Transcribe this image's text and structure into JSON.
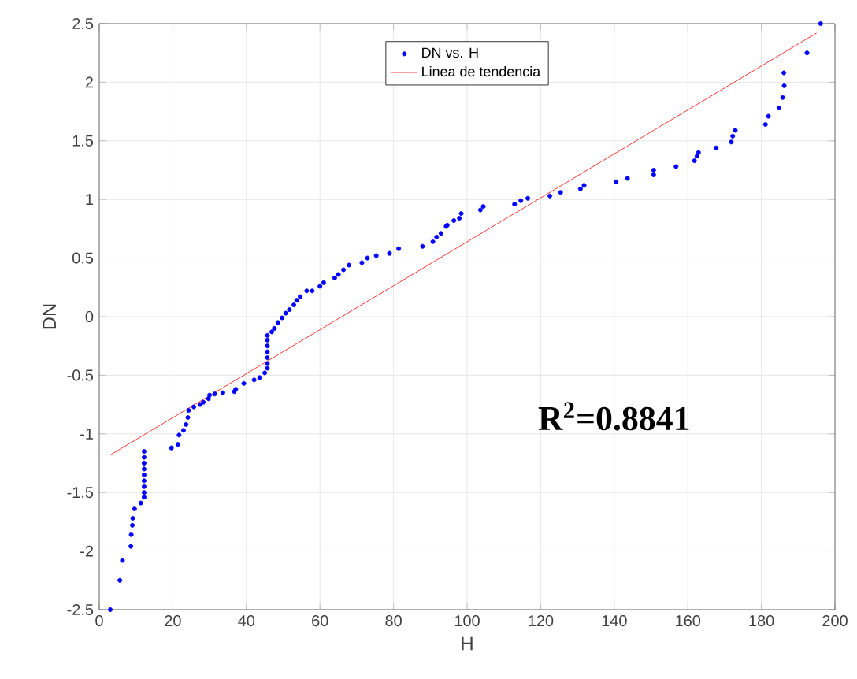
{
  "chart_data": {
    "type": "scatter",
    "xlabel": "H",
    "ylabel": "DN",
    "xlim": [
      0,
      200
    ],
    "ylim": [
      -2.5,
      2.5
    ],
    "xticks": [
      0,
      20,
      40,
      60,
      80,
      100,
      120,
      140,
      160,
      180,
      200
    ],
    "yticks": [
      -2.5,
      -2,
      -1.5,
      -1,
      -0.5,
      0,
      0.5,
      1,
      1.5,
      2,
      2.5
    ],
    "grid": true,
    "legend": "top",
    "annotations": [
      "R$^{2}$=0.8841"
    ],
    "series": [
      {
        "name": "DN vs. H",
        "color": "#0000ff",
        "marker": "circle",
        "x": [
          3,
          5.6,
          6.3,
          8.6,
          8.7,
          9,
          9.1,
          9.6,
          11.3,
          12.2,
          12.2,
          12.2,
          12.2,
          12.2,
          12.2,
          12.2,
          12.2,
          12.2,
          19.6,
          21.4,
          21.7,
          22.9,
          23.6,
          24.1,
          24.3,
          25.7,
          27.4,
          28.3,
          29.7,
          30,
          31.4,
          33.6,
          36.7,
          37.1,
          39.3,
          42.1,
          43.6,
          45,
          45.7,
          45.7,
          45.7,
          45.7,
          45.7,
          45.7,
          45.7,
          46.9,
          47.6,
          48.6,
          49.7,
          50.7,
          51.7,
          52.9,
          53.7,
          54.6,
          56.4,
          57.9,
          60,
          61,
          64,
          65,
          66.4,
          67.9,
          71.4,
          72.9,
          75.3,
          78.9,
          81.4,
          87.9,
          90.7,
          91.7,
          92.9,
          94.3,
          94.6,
          96.4,
          97.9,
          98.4,
          103.6,
          104.4,
          112.9,
          114.6,
          116.5,
          122.5,
          125.4,
          130.8,
          131.8,
          140.5,
          143.6,
          150.7,
          150.7,
          156.8,
          161.8,
          162.5,
          162.9,
          167.7,
          171.8,
          172.2,
          172.9,
          181.1,
          181.9,
          184.8,
          185.8,
          186.2,
          186.1,
          192.4,
          196.1
        ],
        "values": [
          -2.5,
          -2.25,
          -2.08,
          -1.96,
          -1.86,
          -1.78,
          -1.72,
          -1.64,
          -1.59,
          -1.54,
          -1.5,
          -1.45,
          -1.4,
          -1.35,
          -1.3,
          -1.25,
          -1.2,
          -1.15,
          -1.12,
          -1.09,
          -1.01,
          -0.97,
          -0.92,
          -0.86,
          -0.8,
          -0.77,
          -0.75,
          -0.73,
          -0.7,
          -0.67,
          -0.66,
          -0.65,
          -0.64,
          -0.62,
          -0.57,
          -0.54,
          -0.52,
          -0.48,
          -0.44,
          -0.4,
          -0.35,
          -0.3,
          -0.25,
          -0.2,
          -0.16,
          -0.13,
          -0.1,
          -0.05,
          -0.01,
          0.03,
          0.06,
          0.1,
          0.14,
          0.17,
          0.22,
          0.22,
          0.26,
          0.29,
          0.33,
          0.36,
          0.4,
          0.44,
          0.46,
          0.5,
          0.52,
          0.54,
          0.58,
          0.6,
          0.64,
          0.68,
          0.71,
          0.77,
          0.78,
          0.82,
          0.84,
          0.88,
          0.91,
          0.94,
          0.96,
          0.99,
          1.01,
          1.03,
          1.06,
          1.09,
          1.12,
          1.15,
          1.18,
          1.21,
          1.25,
          1.28,
          1.33,
          1.37,
          1.4,
          1.44,
          1.49,
          1.54,
          1.59,
          1.64,
          1.71,
          1.78,
          1.87,
          1.97,
          2.08,
          2.25,
          2.5
        ]
      },
      {
        "name": "Linea de tendencia",
        "color": "#ff0000",
        "type": "line",
        "marker": "none",
        "x": [
          3,
          195
        ],
        "values": [
          -1.18,
          2.42
        ]
      }
    ]
  }
}
